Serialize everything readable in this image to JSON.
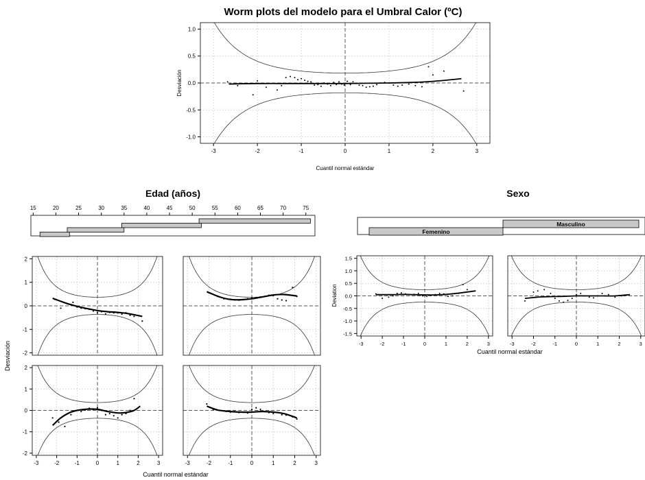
{
  "figure": {
    "title": "Worm plots del modelo para el Umbral Calor (ºC)"
  },
  "chart_data": [
    {
      "id": "main",
      "type": "scatter",
      "title": "Worm plots del modelo para el Umbral Calor (ºC)",
      "xlabel": "Cuantil normal estándar",
      "ylabel": "Desviación",
      "xlim": [
        -3.3,
        3.3
      ],
      "ylim": [
        -1.12,
        1.12
      ],
      "xticks": [
        "-3",
        "-2",
        "-1",
        "0",
        "1",
        "2",
        "3"
      ],
      "xtick_values": [
        -3,
        -2,
        -1,
        0,
        1,
        2,
        3
      ],
      "yticks": [
        "-1.0",
        "-0.5",
        "0.0",
        "0.5",
        "1.0"
      ],
      "ytick_values": [
        -1,
        -0.5,
        0,
        0.5,
        1
      ],
      "grid": true,
      "worm_curve": {
        "x": [
          -2.65,
          -2,
          -1.5,
          -1,
          -0.5,
          0,
          0.5,
          1,
          1.5,
          2,
          2.65
        ],
        "y": [
          -0.02,
          -0.01,
          -0.01,
          -0.01,
          -0.01,
          -0.01,
          -0.005,
          0.0,
          0.01,
          0.03,
          0.08
        ]
      },
      "points": {
        "x": [
          -2.68,
          -2.45,
          -2.1,
          -2.0,
          -1.8,
          -1.55,
          -1.45,
          -1.35,
          -1.25,
          -1.15,
          -1.08,
          -1.0,
          -0.92,
          -0.85,
          -0.78,
          -0.7,
          -0.62,
          -0.55,
          -0.48,
          -0.4,
          -0.33,
          -0.26,
          -0.2,
          -0.14,
          -0.08,
          -0.02,
          0.05,
          0.12,
          0.18,
          0.25,
          0.32,
          0.4,
          0.48,
          0.56,
          0.64,
          0.72,
          0.8,
          0.9,
          1.0,
          1.1,
          1.2,
          1.3,
          1.45,
          1.6,
          1.75,
          1.9,
          2.0,
          2.25,
          2.7
        ],
        "y": [
          0.02,
          -0.05,
          -0.22,
          0.04,
          -0.08,
          -0.13,
          -0.05,
          0.1,
          0.12,
          0.1,
          0.06,
          0.08,
          0.05,
          0.03,
          0.02,
          -0.04,
          -0.03,
          -0.06,
          0.0,
          -0.02,
          -0.05,
          0.01,
          -0.03,
          0.02,
          -0.02,
          -0.04,
          0.03,
          -0.03,
          0.02,
          -0.01,
          -0.04,
          -0.05,
          -0.08,
          -0.07,
          -0.06,
          -0.03,
          0.0,
          0.01,
          0.0,
          -0.04,
          -0.06,
          -0.04,
          -0.02,
          -0.05,
          -0.07,
          0.3,
          0.15,
          0.22,
          -0.15
        ]
      }
    },
    {
      "id": "edad",
      "type": "scatter",
      "title": "Edad (años)",
      "panel_xlabel": "Cuantil normal estándar",
      "panel_ylabel": "Desviación",
      "xlim": [
        -3.2,
        3.2
      ],
      "ylim": [
        -2.1,
        2.1
      ],
      "xticks": [
        "-3",
        "-2",
        "-1",
        "0",
        "1",
        "2",
        "3"
      ],
      "xtick_values": [
        -3,
        -2,
        -1,
        0,
        1,
        2,
        3
      ],
      "yticks": [
        "-2",
        "-1",
        "0",
        "1",
        "2"
      ],
      "ytick_values": [
        -2,
        -1,
        0,
        1,
        2
      ],
      "grid": true,
      "conditioning": {
        "ticks": [
          "15",
          "20",
          "25",
          "30",
          "35",
          "40",
          "45",
          "50",
          "55",
          "60",
          "65",
          "70",
          "75"
        ],
        "tick_values": [
          15,
          20,
          25,
          30,
          35,
          40,
          45,
          50,
          55,
          60,
          65,
          70,
          75
        ],
        "range": [
          14.5,
          77
        ],
        "intervals": [
          [
            16.5,
            23
          ],
          [
            22.5,
            35
          ],
          [
            34.5,
            52
          ],
          [
            51.5,
            76
          ]
        ]
      },
      "panels": [
        {
          "curve": {
            "x": [
              -2.2,
              -1.5,
              -1,
              -0.5,
              0,
              0.5,
              1,
              1.5,
              2.2
            ],
            "y": [
              0.32,
              0.1,
              -0.02,
              -0.12,
              -0.2,
              -0.25,
              -0.28,
              -0.33,
              -0.45
            ]
          },
          "points": {
            "x": [
              -2.1,
              -1.8,
              -1.5,
              -1.2,
              -1.0,
              -0.8,
              -0.6,
              -0.4,
              -0.2,
              0.0,
              0.2,
              0.4,
              0.6,
              0.8,
              1.0,
              1.2,
              1.4,
              1.6,
              1.8,
              2.2
            ],
            "y": [
              0.28,
              -0.1,
              0.1,
              0.15,
              -0.05,
              -0.1,
              -0.12,
              -0.15,
              -0.22,
              -0.3,
              -0.25,
              -0.35,
              -0.28,
              -0.3,
              -0.3,
              -0.35,
              -0.3,
              -0.4,
              -0.45,
              -0.65
            ]
          }
        },
        {
          "curve": {
            "x": [
              -2.1,
              -1.5,
              -1,
              -0.5,
              0,
              0.5,
              1,
              1.5,
              2.1
            ],
            "y": [
              0.6,
              0.38,
              0.27,
              0.26,
              0.3,
              0.38,
              0.46,
              0.48,
              0.42
            ]
          },
          "points": {
            "x": [
              -2.0,
              -1.6,
              -1.3,
              -1.0,
              -0.8,
              -0.6,
              -0.4,
              -0.2,
              0.0,
              0.2,
              0.4,
              0.6,
              0.8,
              1.0,
              1.2,
              1.4,
              1.6,
              1.9,
              2.1
            ],
            "y": [
              0.55,
              0.4,
              0.3,
              0.28,
              0.25,
              0.24,
              0.26,
              0.3,
              0.33,
              0.35,
              0.38,
              0.4,
              0.45,
              0.43,
              0.3,
              0.25,
              0.22,
              0.78,
              0.4
            ]
          }
        },
        {
          "curve": {
            "x": [
              -2.2,
              -1.8,
              -1.4,
              -1,
              -0.5,
              0,
              0.5,
              1,
              1.4,
              1.8,
              2.1
            ],
            "y": [
              -0.7,
              -0.35,
              -0.12,
              0.0,
              0.06,
              0.05,
              -0.05,
              -0.12,
              -0.1,
              0.0,
              0.2
            ]
          },
          "points": {
            "x": [
              -2.2,
              -1.9,
              -1.6,
              -1.3,
              -1.0,
              -0.8,
              -0.6,
              -0.4,
              -0.2,
              0.0,
              0.2,
              0.4,
              0.6,
              0.8,
              1.0,
              1.2,
              1.4,
              1.6,
              1.8
            ],
            "y": [
              -0.35,
              -0.55,
              -0.75,
              -0.2,
              0.0,
              -0.05,
              0.02,
              0.1,
              0.05,
              0.12,
              0.0,
              -0.2,
              -0.15,
              -0.25,
              -0.35,
              -0.2,
              -0.15,
              0.0,
              0.55
            ]
          }
        },
        {
          "curve": {
            "x": [
              -2.1,
              -1.6,
              -1,
              -0.5,
              0,
              0.5,
              1,
              1.5,
              2.1
            ],
            "y": [
              0.2,
              0.02,
              -0.05,
              -0.08,
              -0.08,
              -0.05,
              -0.08,
              -0.15,
              -0.35
            ]
          },
          "points": {
            "x": [
              -2.1,
              -1.8,
              -1.5,
              -1.2,
              -1.0,
              -0.8,
              -0.6,
              -0.4,
              -0.2,
              0.0,
              0.2,
              0.4,
              0.6,
              0.8,
              1.0,
              1.2,
              1.4,
              1.6,
              1.9,
              2.1
            ],
            "y": [
              0.3,
              0.05,
              0.0,
              -0.05,
              -0.08,
              -0.05,
              -0.1,
              -0.08,
              -0.12,
              0.05,
              0.12,
              0.05,
              -0.05,
              -0.1,
              -0.15,
              -0.1,
              -0.2,
              -0.22,
              -0.3,
              -0.4
            ]
          }
        }
      ]
    },
    {
      "id": "sexo",
      "type": "scatter",
      "title": "Sexo",
      "panel_xlabel": "Cuantil normal estándar",
      "panel_ylabel": "Deviation",
      "xlim": [
        -3.2,
        3.2
      ],
      "ylim": [
        -1.6,
        1.6
      ],
      "xticks": [
        "-3",
        "-2",
        "-1",
        "0",
        "1",
        "2",
        "3"
      ],
      "xtick_values": [
        -3,
        -2,
        -1,
        0,
        1,
        2,
        3
      ],
      "yticks": [
        "-1.5",
        "-1.0",
        "-0.5",
        "0.0",
        "0.5",
        "1.0",
        "1.5"
      ],
      "ytick_values": [
        -1.5,
        -1,
        -0.5,
        0,
        0.5,
        1,
        1.5
      ],
      "grid": true,
      "conditioning": {
        "levels": [
          "Femenino",
          "Masculino"
        ]
      },
      "panels": [
        {
          "curve": {
            "x": [
              -2.3,
              -1.5,
              -1,
              -0.5,
              0,
              0.5,
              1,
              1.5,
              2.4
            ],
            "y": [
              0.05,
              0.05,
              0.06,
              0.05,
              0.04,
              0.04,
              0.06,
              0.1,
              0.2
            ]
          },
          "points": {
            "x": [
              -2.3,
              -2.0,
              -1.7,
              -1.5,
              -1.3,
              -1.1,
              -0.9,
              -0.7,
              -0.5,
              -0.3,
              -0.1,
              0.1,
              0.3,
              0.5,
              0.7,
              0.9,
              1.1,
              1.3,
              1.6,
              1.8,
              2.0
            ],
            "y": [
              0.08,
              -0.1,
              -0.05,
              0.0,
              0.1,
              0.12,
              0.08,
              0.05,
              0.06,
              0.1,
              0.0,
              -0.02,
              0.02,
              0.05,
              0.1,
              0.08,
              -0.02,
              0.0,
              0.1,
              0.45,
              0.25
            ]
          }
        },
        {
          "curve": {
            "x": [
              -2.4,
              -1.8,
              -1.2,
              -0.6,
              0,
              0.6,
              1.2,
              1.8,
              2.5
            ],
            "y": [
              -0.1,
              -0.05,
              -0.03,
              -0.02,
              0.0,
              0.0,
              0.0,
              0.0,
              0.05
            ]
          },
          "points": {
            "x": [
              -2.4,
              -2.0,
              -1.8,
              -1.5,
              -1.2,
              -1.0,
              -0.8,
              -0.6,
              -0.4,
              -0.2,
              0.0,
              0.2,
              0.4,
              0.6,
              0.8,
              1.0,
              1.2,
              1.5,
              1.8,
              2.1
            ],
            "y": [
              -0.2,
              0.15,
              0.2,
              0.25,
              0.1,
              -0.1,
              -0.2,
              -0.25,
              -0.18,
              -0.1,
              0.05,
              0.1,
              0.0,
              -0.05,
              -0.08,
              0.0,
              0.1,
              0.05,
              -0.05,
              0.0
            ]
          }
        }
      ]
    }
  ]
}
